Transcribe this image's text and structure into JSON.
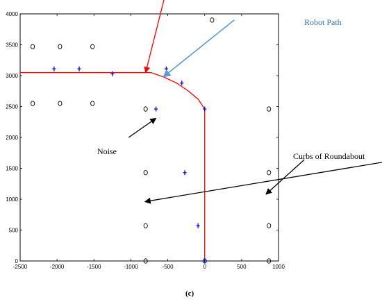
{
  "chart_data": {
    "type": "scatter",
    "xlim": [
      -2500,
      1000
    ],
    "ylim": [
      0,
      4000
    ],
    "x_ticks": [
      "-2500",
      "-2000",
      "-1500",
      "-1000",
      "-500",
      "0",
      "500",
      "1000"
    ],
    "y_ticks": [
      "0",
      "500",
      "1000",
      "1500",
      "2000",
      "2500",
      "3000",
      "3500",
      "4000"
    ],
    "grid": false,
    "series": [
      {
        "marker": "circle",
        "color": "#000000",
        "points": [
          [
            -2330,
            3470
          ],
          [
            -1960,
            3470
          ],
          [
            -1520,
            3470
          ],
          [
            -2330,
            2550
          ],
          [
            -1960,
            2550
          ],
          [
            -1520,
            2550
          ],
          [
            -800,
            2460
          ],
          [
            -800,
            1430
          ],
          [
            -800,
            570
          ],
          [
            -800,
            0
          ],
          [
            100,
            3900
          ],
          [
            0,
            0
          ],
          [
            870,
            2460
          ],
          [
            870,
            1430
          ],
          [
            870,
            570
          ],
          [
            870,
            0
          ]
        ]
      },
      {
        "marker": "plus",
        "color": "#0000ff",
        "points": [
          [
            -2040,
            3110
          ],
          [
            -1700,
            3110
          ],
          [
            -1250,
            3030
          ],
          [
            -520,
            3110
          ],
          [
            -310,
            2880
          ],
          [
            0,
            2460
          ],
          [
            -660,
            2460
          ],
          [
            -270,
            1430
          ],
          [
            -90,
            570
          ],
          [
            0,
            0
          ]
        ]
      },
      {
        "type": "line",
        "color": "#ff0000",
        "points": [
          [
            -2500,
            3050
          ],
          [
            -1000,
            3050
          ],
          [
            -730,
            3050
          ],
          [
            -560,
            2980
          ],
          [
            -380,
            2880
          ],
          [
            -220,
            2750
          ],
          [
            -90,
            2620
          ],
          [
            0,
            2460
          ],
          [
            0,
            0
          ]
        ]
      }
    ],
    "annotations": [
      {
        "label": "Robot Path",
        "color": "#2e75b6",
        "arrow_color": "#5b9bd5",
        "arrow_from": [
          400,
          3900
        ],
        "arrow_to": [
          -560,
          2980
        ]
      },
      {
        "label": "",
        "color": "#ff0000",
        "arrow_color": "#ff0000",
        "arrow_from": [
          -520,
          4380
        ],
        "arrow_to": [
          -800,
          3050
        ]
      },
      {
        "label": "Noise",
        "color": "#000000",
        "arrow_color": "#000000",
        "arrow_from": [
          -1030,
          2000
        ],
        "arrow_to": [
          -660,
          2310
        ]
      },
      {
        "label": "Curbs of Roundabout",
        "color": "#000000",
        "arrow_color": "#000000",
        "arrow_from": [
          2620,
          1640
        ],
        "arrow_to": [
          -810,
          960
        ]
      },
      {
        "label": "",
        "color": "#000000",
        "arrow_color": "#000000",
        "arrow_from": [
          1350,
          1640
        ],
        "arrow_to": [
          830,
          1080
        ]
      }
    ],
    "caption": "(c)"
  }
}
